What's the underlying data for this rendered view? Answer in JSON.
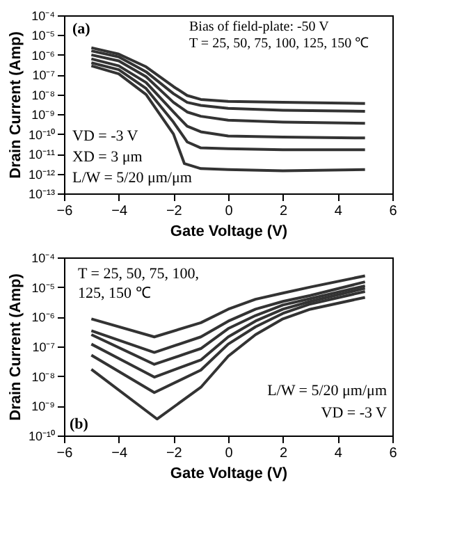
{
  "chart_data": [
    {
      "type": "line",
      "xlabel": "Gate Voltage (V)",
      "ylabel": "Drain Current (Amp)",
      "log": "y",
      "grid": false,
      "legend": false,
      "line_style": "solid",
      "xlim": [
        -6,
        6
      ],
      "xticks": [
        -6,
        -4,
        -2,
        0,
        2,
        4,
        6
      ],
      "ylim": [
        1e-13,
        0.0001
      ],
      "yticks": [
        {
          "value": 1e-13,
          "label": "10⁻¹³"
        },
        {
          "value": 1e-12,
          "label": "10⁻¹²"
        },
        {
          "value": 1e-11,
          "label": "10⁻¹¹"
        },
        {
          "value": 1e-10,
          "label": "10⁻¹⁰"
        },
        {
          "value": 1e-09,
          "label": "10⁻⁹"
        },
        {
          "value": 1e-08,
          "label": "10⁻⁸"
        },
        {
          "value": 1e-07,
          "label": "10⁻⁷"
        },
        {
          "value": 1e-06,
          "label": "10⁻⁶"
        },
        {
          "value": 1e-05,
          "label": "10⁻⁵"
        },
        {
          "value": 0.0001,
          "label": "10⁻⁴"
        }
      ],
      "annotations": [
        "(a)",
        "Bias of field-plate: -50 V",
        "T = 25, 50, 75, 100, 125, 150 ℃",
        "VD = -3 V",
        "XD = 3 μm",
        "L/W = 5/20 μm/μm"
      ],
      "series": [
        {
          "color": "#333333",
          "x": [
            -5,
            -4,
            -3,
            -2,
            -1.5,
            -1,
            0,
            2,
            5
          ],
          "values": [
            2.3e-06,
            1.1e-06,
            2.5e-07,
            2.5e-08,
            8.9e-09,
            5.6e-09,
            4.5e-09,
            4e-09,
            3.5e-09
          ]
        },
        {
          "color": "#333333",
          "x": [
            -5,
            -4,
            -3,
            -2,
            -1.5,
            -1,
            0,
            2,
            5
          ],
          "values": [
            1.6e-06,
            7.9e-07,
            1.4e-07,
            1.1e-08,
            4e-09,
            2.8e-09,
            2e-09,
            1.6e-09,
            1.4e-09
          ]
        },
        {
          "color": "#333333",
          "x": [
            -5,
            -4,
            -3,
            -2,
            -1.5,
            -1,
            0,
            2,
            5
          ],
          "values": [
            1e-06,
            5e-07,
            7.9e-08,
            4e-09,
            1.3e-09,
            7.9e-10,
            5e-10,
            4e-10,
            3.5e-10
          ]
        },
        {
          "color": "#333333",
          "x": [
            -5,
            -4,
            -3,
            -2,
            -1.5,
            -1,
            0,
            2,
            5
          ],
          "values": [
            6.3e-07,
            2.8e-07,
            4e-08,
            1.3e-09,
            2.5e-10,
            1.3e-10,
            7.9e-11,
            7.1e-11,
            6.3e-11
          ]
        },
        {
          "color": "#333333",
          "x": [
            -5,
            -4,
            -3,
            -2,
            -1.5,
            -1,
            0,
            2,
            5
          ],
          "values": [
            4e-07,
            1.8e-07,
            2e-08,
            4e-10,
            4e-11,
            2e-11,
            1.8e-11,
            1.6e-11,
            1.6e-11
          ]
        },
        {
          "color": "#333333",
          "x": [
            -5,
            -4,
            -3,
            -2,
            -1.6,
            -1,
            0,
            2,
            5
          ],
          "values": [
            2.8e-07,
            1.1e-07,
            1e-08,
            1e-10,
            3.2e-12,
            1.8e-12,
            1.6e-12,
            1.4e-12,
            1.6e-12
          ]
        }
      ]
    },
    {
      "type": "line",
      "xlabel": "Gate Voltage (V)",
      "ylabel": "Drain Current (Amp)",
      "log": "y",
      "grid": false,
      "legend": false,
      "line_style": "solid",
      "xlim": [
        -6,
        6
      ],
      "xticks": [
        -6,
        -4,
        -2,
        0,
        2,
        4,
        6
      ],
      "ylim": [
        1e-10,
        0.0001
      ],
      "yticks": [
        {
          "value": 1e-10,
          "label": "10⁻¹⁰"
        },
        {
          "value": 1e-09,
          "label": "10⁻⁹"
        },
        {
          "value": 1e-08,
          "label": "10⁻⁸"
        },
        {
          "value": 1e-07,
          "label": "10⁻⁷"
        },
        {
          "value": 1e-06,
          "label": "10⁻⁶"
        },
        {
          "value": 1e-05,
          "label": "10⁻⁵"
        },
        {
          "value": 0.0001,
          "label": "10⁻⁴"
        }
      ],
      "annotations": [
        "T = 25, 50, 75, 100,",
        "125, 150 ℃",
        "L/W = 5/20 μm/μm",
        "VD = -3 V",
        "(b)"
      ],
      "series": [
        {
          "color": "#333333",
          "x": [
            -5,
            -2.7,
            -1,
            0,
            1,
            2,
            3,
            5
          ],
          "values": [
            8.5e-07,
            2.1e-07,
            6.3e-07,
            1.8e-06,
            3.9e-06,
            6.3e-06,
            1e-05,
            2.4e-05
          ]
        },
        {
          "color": "#333333",
          "x": [
            -5,
            -2.7,
            -1,
            0,
            1,
            2,
            3,
            5
          ],
          "values": [
            3.4e-07,
            6.3e-08,
            2.1e-07,
            7.1e-07,
            1.8e-06,
            3.3e-06,
            5.2e-06,
            1.5e-05
          ]
        },
        {
          "color": "#333333",
          "x": [
            -5,
            -2.7,
            -1,
            0,
            1,
            2,
            3,
            5
          ],
          "values": [
            2.5e-07,
            2.5e-08,
            8.5e-08,
            4e-07,
            1.1e-06,
            2.5e-06,
            4.1e-06,
            1.1e-05
          ]
        },
        {
          "color": "#333333",
          "x": [
            -5,
            -2.7,
            -1,
            0,
            1,
            2,
            3,
            5
          ],
          "values": [
            1.2e-07,
            9.3e-09,
            3.5e-08,
            2.1e-07,
            7.2e-07,
            1.8e-06,
            3.3e-06,
            9.1e-06
          ]
        },
        {
          "color": "#333333",
          "x": [
            -5,
            -2.7,
            -1,
            0,
            1,
            2,
            3,
            5
          ],
          "values": [
            5.1e-08,
            2.8e-09,
            1.6e-08,
            1.2e-07,
            4.6e-07,
            1.3e-06,
            2.7e-06,
            7.1e-06
          ]
        },
        {
          "color": "#333333",
          "x": [
            -5,
            -2.6,
            -1,
            0,
            1,
            2,
            3,
            5
          ],
          "values": [
            1.7e-08,
            3.6e-10,
            4.2e-09,
            4.7e-08,
            2.5e-07,
            8.5e-07,
            1.8e-06,
            4.5e-06
          ]
        }
      ]
    }
  ]
}
